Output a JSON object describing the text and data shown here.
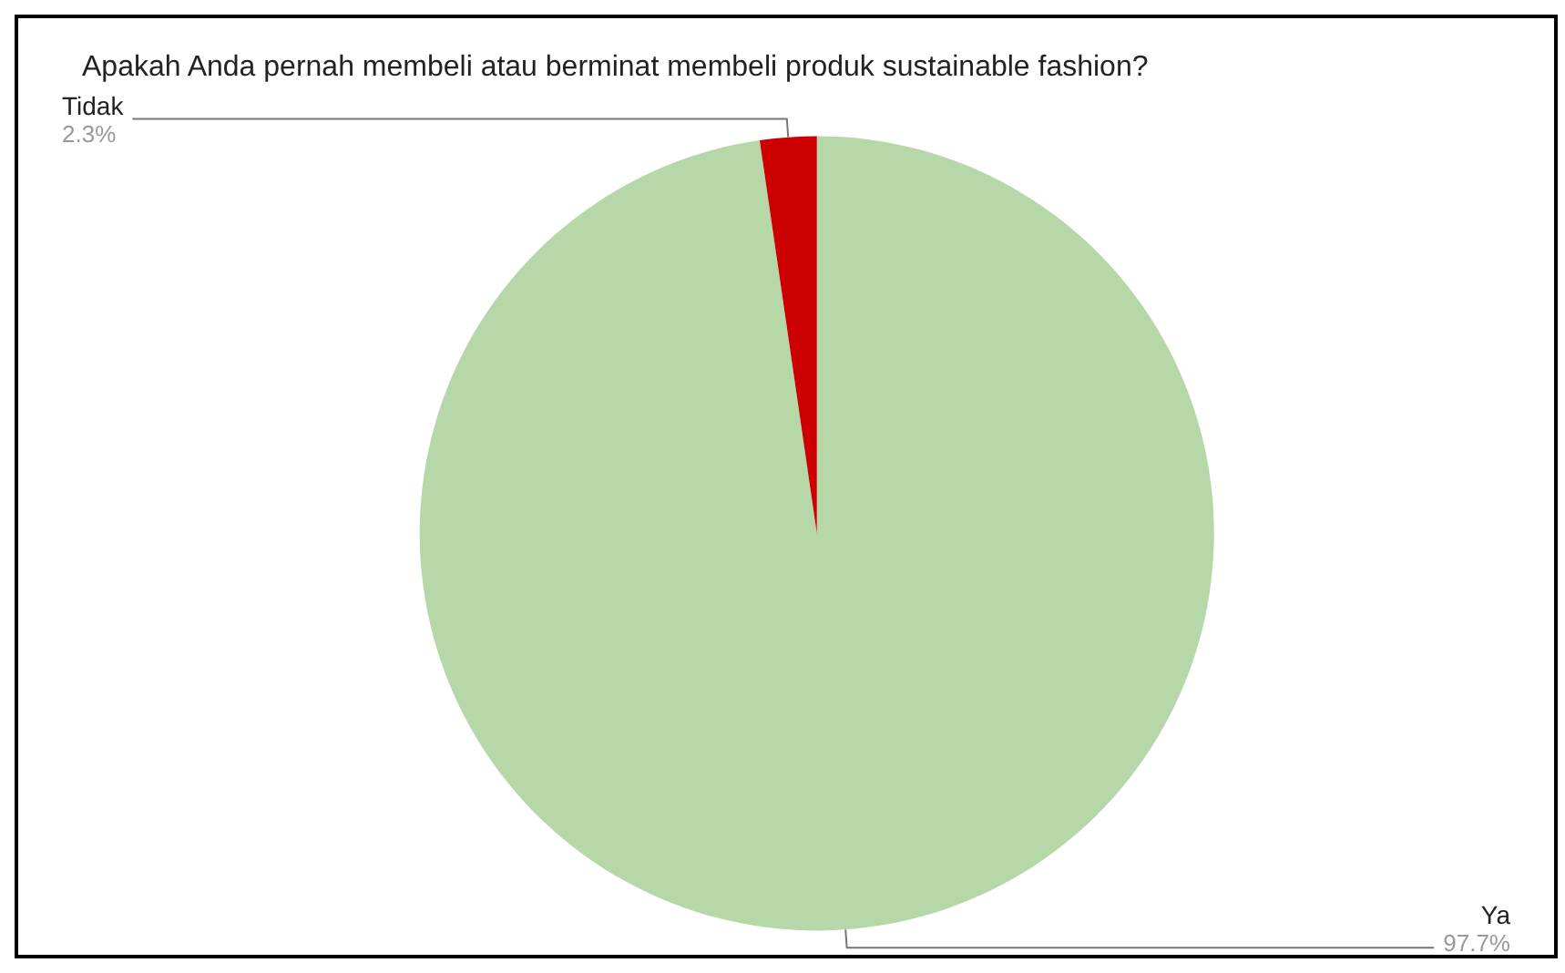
{
  "chart_data": {
    "type": "pie",
    "title": "Apakah Anda pernah membeli atau berminat membeli produk sustainable fashion?",
    "categories": [
      "Ya",
      "Tidak"
    ],
    "values": [
      97.7,
      2.3
    ],
    "colors": [
      "#b6d7a8",
      "#cc0000"
    ],
    "value_labels": [
      "97.7%",
      "2.3%"
    ],
    "legend": false
  }
}
